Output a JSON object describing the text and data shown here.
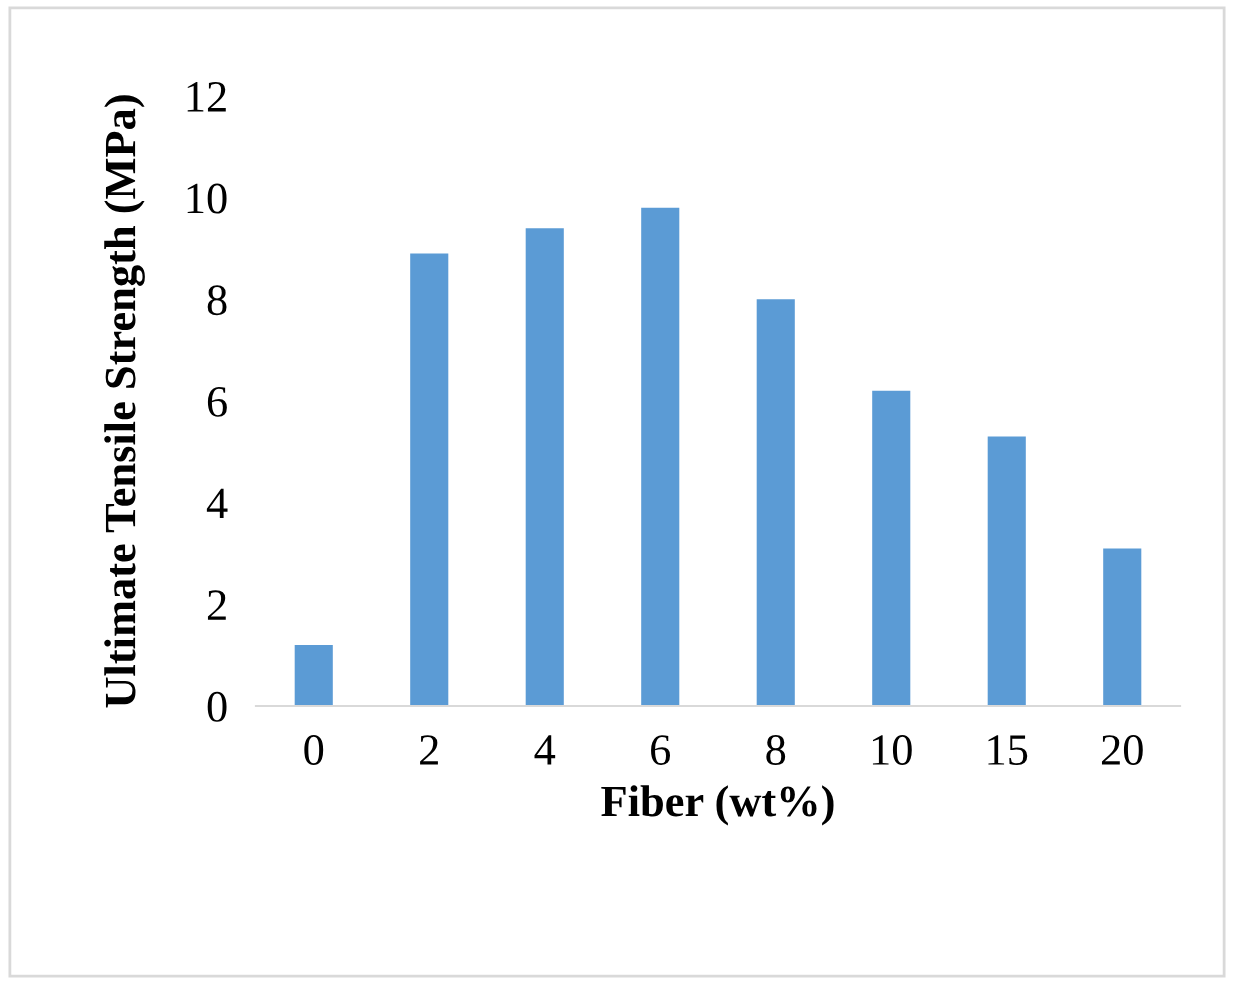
{
  "chart_data": {
    "type": "bar",
    "xlabel": "Fiber (wt%)",
    "ylabel": "Ultimate Tensile Strength (MPa)",
    "categories": [
      "0",
      "2",
      "4",
      "6",
      "8",
      "10",
      "15",
      "20"
    ],
    "values": [
      1.2,
      8.9,
      9.4,
      9.8,
      8.0,
      6.2,
      5.3,
      3.1
    ],
    "color": "#5b9bd5",
    "ylim": [
      0,
      12
    ],
    "yticks": [
      0,
      2,
      4,
      6,
      8,
      10,
      12
    ],
    "grid": false
  }
}
